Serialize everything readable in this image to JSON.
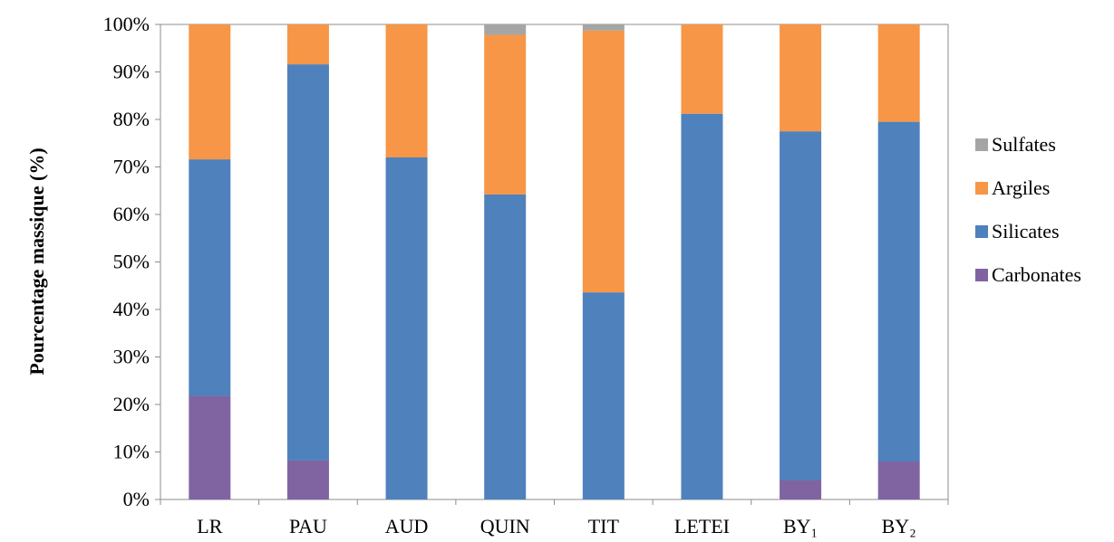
{
  "chart_data": {
    "type": "bar",
    "stacked": true,
    "ylabel": "Pourcentage massique (%)",
    "xlabel": "",
    "ylim": [
      0,
      100
    ],
    "yticks": [
      "0%",
      "10%",
      "20%",
      "30%",
      "40%",
      "50%",
      "60%",
      "70%",
      "80%",
      "90%",
      "100%"
    ],
    "categories": [
      "LR",
      "PAU",
      "AUD",
      "QUIN",
      "TIT",
      "LETEI",
      "BY₁",
      "BY₂"
    ],
    "series": [
      {
        "name": "Carbonates",
        "color": "#8064A2",
        "values": [
          21.8,
          8.2,
          0,
          0,
          0,
          0,
          4.0,
          8.0
        ]
      },
      {
        "name": "Silicates",
        "color": "#4F81BD",
        "values": [
          49.8,
          83.4,
          72.0,
          64.2,
          43.6,
          81.2,
          73.5,
          71.5
        ]
      },
      {
        "name": "Argiles",
        "color": "#F79646",
        "values": [
          28.4,
          8.4,
          28.0,
          33.6,
          55.1,
          18.8,
          22.5,
          20.5
        ]
      },
      {
        "name": "Sulfates",
        "color": "#A5A5A5",
        "values": [
          0,
          0,
          0,
          2.2,
          1.3,
          0,
          0,
          0
        ]
      }
    ],
    "legend_order": [
      "Sulfates",
      "Argiles",
      "Silicates",
      "Carbonates"
    ],
    "legend_position": "right",
    "grid": false
  }
}
